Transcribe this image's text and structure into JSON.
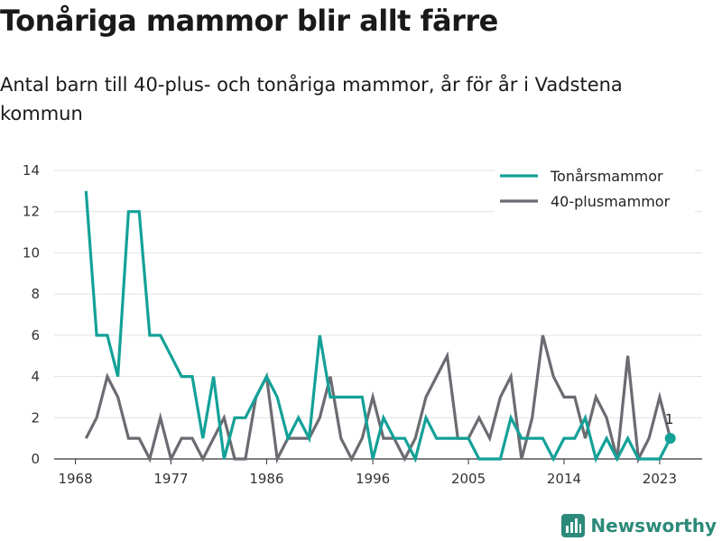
{
  "header": {
    "title": "Tonåriga mammor blir allt färre",
    "subtitle": "Antal barn till 40-plus- och tonåriga mammor, år för år i Vadstena kommun"
  },
  "brand": {
    "name": "Newsworthy",
    "icon": "newsworthy-logo-icon"
  },
  "colors": {
    "teen": "#13a198",
    "forty": "#6b6b72",
    "grid": "#e2e2e2",
    "axis": "#333333"
  },
  "chart_data": {
    "type": "line",
    "title": "Tonåriga mammor blir allt färre",
    "subtitle": "Antal barn till 40-plus- och tonåriga mammor, år för år i Vadstena kommun",
    "xlabel": "",
    "ylabel": "",
    "xlim": [
      1966,
      2027
    ],
    "ylim": [
      0,
      14
    ],
    "x_ticks": [
      1968,
      1977,
      1986,
      1996,
      2005,
      2014,
      2023
    ],
    "y_ticks": [
      0,
      2,
      4,
      6,
      8,
      10,
      12,
      14
    ],
    "grid": true,
    "legend_position": "top-right",
    "x": [
      1969,
      1970,
      1971,
      1972,
      1973,
      1974,
      1975,
      1976,
      1977,
      1978,
      1979,
      1980,
      1981,
      1982,
      1983,
      1984,
      1985,
      1986,
      1987,
      1988,
      1989,
      1990,
      1991,
      1992,
      1993,
      1994,
      1995,
      1996,
      1997,
      1998,
      1999,
      2000,
      2001,
      2002,
      2003,
      2004,
      2005,
      2006,
      2007,
      2008,
      2009,
      2010,
      2011,
      2012,
      2013,
      2014,
      2015,
      2016,
      2017,
      2018,
      2019,
      2020,
      2021,
      2022,
      2023,
      2024
    ],
    "series": [
      {
        "name": "Tonårsmammor",
        "color": "#13a198",
        "values": [
          13,
          6,
          6,
          4,
          12,
          12,
          6,
          6,
          5,
          4,
          4,
          1,
          4,
          0,
          2,
          2,
          3,
          4,
          3,
          1,
          2,
          1,
          6,
          3,
          3,
          3,
          3,
          0,
          2,
          1,
          1,
          0,
          2,
          1,
          1,
          1,
          1,
          0,
          0,
          0,
          2,
          1,
          1,
          1,
          0,
          1,
          1,
          2,
          0,
          1,
          0,
          1,
          0,
          0,
          0,
          1
        ]
      },
      {
        "name": "40-plusmammor",
        "color": "#6b6b72",
        "values": [
          1,
          2,
          4,
          3,
          1,
          1,
          0,
          2,
          0,
          1,
          1,
          0,
          1,
          2,
          0,
          0,
          3,
          4,
          0,
          1,
          1,
          1,
          2,
          4,
          1,
          0,
          1,
          3,
          1,
          1,
          0,
          1,
          3,
          4,
          5,
          1,
          1,
          2,
          1,
          3,
          4,
          0,
          2,
          6,
          4,
          3,
          3,
          1,
          3,
          2,
          0,
          5,
          0,
          1,
          3,
          1
        ]
      }
    ],
    "annotations": [
      {
        "series": "Tonårsmammor",
        "x": 2024,
        "y": 1,
        "text": "1"
      }
    ]
  }
}
